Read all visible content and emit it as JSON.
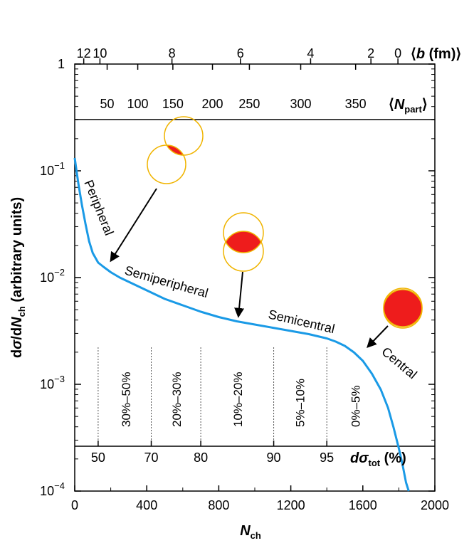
{
  "chart_data": {
    "type": "line",
    "xlabel_main": "N",
    "xlabel_sub": "ch",
    "ylabel_pre": "d",
    "ylabel_sigma": "σ",
    "ylabel_mid": "/d",
    "ylabel_N": "N",
    "ylabel_sub": "ch",
    "ylabel_post": " (arbitrary units)",
    "xlim": [
      0,
      2000
    ],
    "ylim_log10": [
      -4,
      0
    ],
    "x_ticks": [
      {
        "value": 0,
        "label": "0"
      },
      {
        "value": 400,
        "label": "400"
      },
      {
        "value": 800,
        "label": "800"
      },
      {
        "value": 1200,
        "label": "1200"
      },
      {
        "value": 1600,
        "label": "1600"
      },
      {
        "value": 2000,
        "label": "2000"
      }
    ],
    "y_ticks": [
      {
        "exp": -4,
        "base": "10",
        "sup": "−4"
      },
      {
        "exp": -3,
        "base": "10",
        "sup": "−3"
      },
      {
        "exp": -2,
        "base": "10",
        "sup": "−2"
      },
      {
        "exp": -1,
        "base": "10",
        "sup": "−1"
      },
      {
        "exp": 0,
        "base": "1",
        "sup": ""
      }
    ],
    "series": [
      {
        "name": "dσ/dNch",
        "color": "#1a9ae6",
        "x": [
          0,
          10,
          20,
          40,
          60,
          80,
          100,
          130,
          160,
          200,
          250,
          300,
          400,
          500,
          600,
          700,
          800,
          900,
          1000,
          1100,
          1200,
          1300,
          1400,
          1450,
          1500,
          1550,
          1600,
          1650,
          1700,
          1740,
          1770,
          1800,
          1820,
          1840,
          1855
        ],
        "log10_y": [
          -0.88,
          -1.0,
          -1.12,
          -1.32,
          -1.5,
          -1.66,
          -1.77,
          -1.86,
          -1.9,
          -1.95,
          -2.0,
          -2.04,
          -2.12,
          -2.2,
          -2.26,
          -2.32,
          -2.37,
          -2.41,
          -2.44,
          -2.47,
          -2.5,
          -2.53,
          -2.57,
          -2.6,
          -2.64,
          -2.7,
          -2.78,
          -2.9,
          -3.05,
          -3.22,
          -3.4,
          -3.6,
          -3.75,
          -3.92,
          -4.0
        ]
      }
    ],
    "top_b_axis": {
      "label_b": "b",
      "label_unit": " (fm)",
      "ticks": [
        {
          "label": "12",
          "n_ch": 50
        },
        {
          "label": "10",
          "n_ch": 140
        },
        {
          "label": "8",
          "n_ch": 540
        },
        {
          "label": "6",
          "n_ch": 920
        },
        {
          "label": "4",
          "n_ch": 1310
        },
        {
          "label": "2",
          "n_ch": 1645
        },
        {
          "label": "0",
          "n_ch": 1795
        }
      ]
    },
    "top_npart_axis": {
      "label_N": "N",
      "label_sub": "part",
      "ticks": [
        {
          "label": "50",
          "n_ch": 180
        },
        {
          "label": "100",
          "n_ch": 350
        },
        {
          "label": "150",
          "n_ch": 545
        },
        {
          "label": "200",
          "n_ch": 765
        },
        {
          "label": "250",
          "n_ch": 970
        },
        {
          "label": "300",
          "n_ch": 1255
        },
        {
          "label": "350",
          "n_ch": 1560
        }
      ]
    },
    "bottom_pct_axis": {
      "label_pre": "d",
      "label_sigma": "σ",
      "label_sub": "tot",
      "label_post": " (%)",
      "ticks": [
        {
          "label": "50",
          "n_ch": 130
        },
        {
          "label": "70",
          "n_ch": 425
        },
        {
          "label": "80",
          "n_ch": 700
        },
        {
          "label": "90",
          "n_ch": 1105
        },
        {
          "label": "95",
          "n_ch": 1400
        }
      ]
    },
    "centrality_bins": [
      {
        "label": "30%–50%",
        "n_ch_center": 285
      },
      {
        "label": "20%–30%",
        "n_ch_center": 565
      },
      {
        "label": "10%–20%",
        "n_ch_center": 905
      },
      {
        "label": "5%–10%",
        "n_ch_center": 1250
      },
      {
        "label": "0%–5%",
        "n_ch_center": 1560
      }
    ],
    "centrality_dividers_n_ch": [
      130,
      425,
      700,
      1105,
      1400
    ],
    "region_labels": [
      "Peripheral",
      "Semiperipheral",
      "Semicentral",
      "Central"
    ]
  },
  "colors": {
    "curve": "#1a9ae6",
    "overlap_fill": "#ee1c1c",
    "nucleus_stroke": "#f0b400"
  }
}
